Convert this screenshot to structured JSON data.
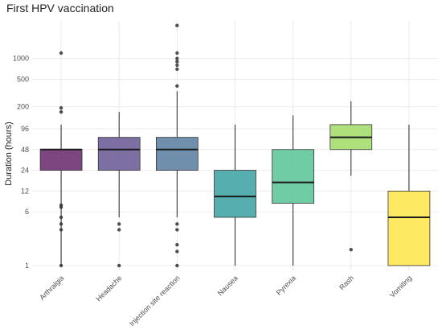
{
  "chart_data": {
    "type": "boxplot",
    "title": "First HPV vaccination",
    "xlabel": "",
    "ylabel": "Duration (hours)",
    "y_scale": "log",
    "ylim": [
      0.85,
      3500
    ],
    "y_ticks": [
      1,
      6,
      12,
      24,
      48,
      96,
      200,
      500,
      1000
    ],
    "grid": true,
    "categories": [
      "Arthralgia",
      "Headache",
      "Injection site reaction",
      "Nausea",
      "Pyrexia",
      "Rash",
      "Vomiting"
    ],
    "colors": [
      "#6a2c70",
      "#6b5b95",
      "#5c7fa0",
      "#3fa3a3",
      "#5cc597",
      "#a3dc6a",
      "#fde74c"
    ],
    "boxes": [
      {
        "whisker_low": 1,
        "q1": 24,
        "median": 48,
        "q3": 48,
        "whisker_high": 110,
        "outliers": [
          1,
          3.3,
          4,
          5,
          7,
          7.5,
          168,
          192,
          1200
        ]
      },
      {
        "whisker_low": 5,
        "q1": 24,
        "median": 48,
        "q3": 72,
        "whisker_high": 168,
        "outliers": [
          1,
          3.3,
          4
        ]
      },
      {
        "whisker_low": 5,
        "q1": 24,
        "median": 48,
        "q3": 72,
        "whisker_high": 336,
        "outliers": [
          1,
          1.6,
          2,
          3.3,
          4,
          400,
          700,
          800,
          900,
          1000,
          1200,
          3000
        ]
      },
      {
        "whisker_low": 1,
        "q1": 5,
        "median": 10,
        "q3": 24,
        "whisker_high": 110,
        "outliers": []
      },
      {
        "whisker_low": 1,
        "q1": 8,
        "median": 16,
        "q3": 48,
        "whisker_high": 150,
        "outliers": []
      },
      {
        "whisker_low": 20,
        "q1": 48,
        "median": 72,
        "q3": 110,
        "whisker_high": 240,
        "outliers": [
          1.7
        ]
      },
      {
        "whisker_low": 1,
        "q1": 1,
        "median": 5,
        "q3": 12,
        "whisker_high": 110,
        "outliers": []
      }
    ]
  }
}
